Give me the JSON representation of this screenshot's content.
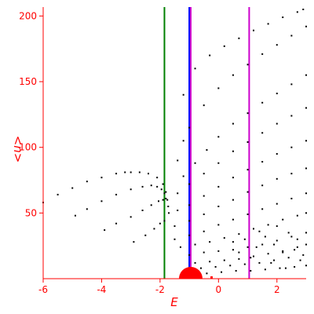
{
  "chart_data": {
    "type": "scatter",
    "xlabel": "E",
    "ylabel": "<n>",
    "xlim": [
      -6,
      3
    ],
    "ylim": [
      0,
      205
    ],
    "grid": false,
    "x_ticks": [
      {
        "value": -6,
        "label": "-6"
      },
      {
        "value": -4,
        "label": "-4"
      },
      {
        "value": -2,
        "label": "-2"
      },
      {
        "value": 0,
        "label": "0"
      },
      {
        "value": 2,
        "label": "2"
      }
    ],
    "y_ticks": [
      {
        "value": 50,
        "label": "50"
      },
      {
        "value": 100,
        "label": "100"
      },
      {
        "value": 150,
        "label": "150"
      },
      {
        "value": 200,
        "label": "200"
      }
    ],
    "colors": {
      "axis": "#ff0000",
      "points": "#000000",
      "green_line": "#008000",
      "blue_line": "#0000ff",
      "magenta_line": "#cc00cc",
      "blob": "#ff0000"
    },
    "vertical_lines": [
      {
        "x": -1.85,
        "color": "#008000"
      },
      {
        "x": -1.0,
        "color": "#0000ff"
      },
      {
        "x": -0.95,
        "color": "#cc00cc"
      },
      {
        "x": 1.05,
        "color": "#cc00cc"
      }
    ],
    "marker": {
      "x": -0.95,
      "y": 0,
      "color": "#ff0000"
    },
    "series": [
      {
        "values": [
          [
            -6,
            58
          ],
          [
            -5.5,
            64
          ],
          [
            -5,
            69
          ],
          [
            -4.5,
            74
          ],
          [
            -4,
            77
          ],
          [
            -3.5,
            80
          ],
          [
            -3.2,
            81
          ],
          [
            -3,
            81
          ],
          [
            -2.7,
            81
          ],
          [
            -2.4,
            80
          ],
          [
            -2.1,
            77
          ],
          [
            -1.9,
            72
          ],
          [
            -1.8,
            66
          ],
          [
            -1.75,
            60
          ],
          [
            -1.72,
            55
          ],
          [
            -1.7,
            50
          ]
        ]
      },
      {
        "values": [
          [
            -4.9,
            48
          ],
          [
            -4.5,
            53
          ],
          [
            -4,
            59
          ],
          [
            -3.5,
            64
          ],
          [
            -3,
            68
          ],
          [
            -2.6,
            70
          ],
          [
            -2.3,
            71
          ],
          [
            -2.1,
            70
          ],
          [
            -1.95,
            68
          ],
          [
            -1.85,
            65
          ]
        ]
      },
      {
        "values": [
          [
            -3.9,
            37
          ],
          [
            -3.5,
            42
          ],
          [
            -3,
            47
          ],
          [
            -2.6,
            52
          ],
          [
            -2.3,
            56
          ],
          [
            -2.05,
            59
          ],
          [
            -1.9,
            60
          ],
          [
            -1.8,
            61
          ]
        ]
      },
      {
        "values": [
          [
            -2.9,
            28
          ],
          [
            -2.5,
            33
          ],
          [
            -2.2,
            38
          ],
          [
            -2,
            42
          ],
          [
            -1.85,
            44
          ]
        ]
      },
      {
        "values": [
          [
            -1.2,
            140
          ],
          [
            -0.8,
            160
          ],
          [
            -0.3,
            170
          ],
          [
            0.2,
            177
          ],
          [
            0.7,
            183
          ],
          [
            1.2,
            189
          ],
          [
            1.7,
            194
          ],
          [
            2.2,
            199
          ],
          [
            2.7,
            203
          ],
          [
            2.9,
            205
          ]
        ]
      },
      {
        "values": [
          [
            -1.4,
            90
          ],
          [
            -1.2,
            105
          ],
          [
            -1,
            115
          ],
          [
            -0.5,
            132
          ],
          [
            0,
            145
          ],
          [
            0.5,
            155
          ],
          [
            1,
            163
          ],
          [
            1.5,
            171
          ],
          [
            2,
            178
          ],
          [
            2.5,
            185
          ],
          [
            3,
            192
          ]
        ]
      },
      {
        "values": [
          [
            -1.2,
            78
          ],
          [
            -0.8,
            88
          ],
          [
            -0.4,
            98
          ],
          [
            0,
            108
          ],
          [
            0.5,
            118
          ],
          [
            1,
            126
          ],
          [
            1.5,
            134
          ],
          [
            2,
            141
          ],
          [
            2.5,
            148
          ],
          [
            3,
            155
          ]
        ]
      },
      {
        "values": [
          [
            -1.4,
            65
          ],
          [
            -1,
            72
          ],
          [
            -0.5,
            80
          ],
          [
            0,
            88
          ],
          [
            0.5,
            97
          ],
          [
            1,
            104
          ],
          [
            1.5,
            111
          ],
          [
            2,
            118
          ],
          [
            2.5,
            124
          ],
          [
            3,
            130
          ]
        ]
      },
      {
        "values": [
          [
            -1.4,
            52
          ],
          [
            -1,
            56
          ],
          [
            -0.5,
            63
          ],
          [
            0,
            70
          ],
          [
            0.5,
            77
          ],
          [
            1,
            83
          ],
          [
            1.5,
            89
          ],
          [
            2,
            95
          ],
          [
            2.5,
            100
          ],
          [
            3,
            105
          ]
        ]
      },
      {
        "values": [
          [
            -1.5,
            40
          ],
          [
            -1,
            44
          ],
          [
            -0.5,
            49
          ],
          [
            0,
            55
          ],
          [
            0.5,
            60
          ],
          [
            1,
            66
          ],
          [
            1.5,
            71
          ],
          [
            2,
            76
          ],
          [
            2.5,
            80
          ],
          [
            3,
            84
          ]
        ]
      },
      {
        "values": [
          [
            -1.5,
            30
          ],
          [
            -1,
            33
          ],
          [
            -0.5,
            36
          ],
          [
            0,
            41
          ],
          [
            0.5,
            45
          ],
          [
            1,
            49
          ],
          [
            1.5,
            53
          ],
          [
            2,
            57
          ],
          [
            2.5,
            61
          ],
          [
            3,
            65
          ]
        ]
      },
      {
        "values": [
          [
            -1.3,
            24
          ],
          [
            -0.8,
            26
          ],
          [
            -0.3,
            28
          ],
          [
            0.2,
            31
          ],
          [
            0.7,
            34
          ],
          [
            1.2,
            38
          ],
          [
            1.7,
            41
          ],
          [
            2.2,
            45
          ],
          [
            2.7,
            48
          ],
          [
            3,
            50
          ]
        ]
      },
      {
        "values": [
          [
            -1.0,
            18
          ],
          [
            -0.5,
            20
          ],
          [
            0,
            21
          ],
          [
            0.5,
            22
          ],
          [
            1,
            24
          ],
          [
            1.5,
            26
          ],
          [
            2,
            29
          ],
          [
            2.5,
            32
          ],
          [
            3,
            35
          ]
        ]
      },
      {
        "values": [
          [
            -0.8,
            12
          ],
          [
            -0.3,
            13
          ],
          [
            0.2,
            14
          ],
          [
            0.7,
            15
          ],
          [
            1.2,
            17
          ],
          [
            1.7,
            19
          ],
          [
            2.2,
            21
          ],
          [
            2.7,
            24
          ],
          [
            3,
            26
          ]
        ]
      },
      {
        "values": [
          [
            -0.6,
            8
          ],
          [
            -0.1,
            9
          ],
          [
            0.4,
            10
          ],
          [
            0.9,
            11
          ],
          [
            1.4,
            12
          ],
          [
            1.9,
            14
          ],
          [
            2.4,
            16
          ],
          [
            2.9,
            18
          ]
        ]
      },
      {
        "values": [
          [
            -0.4,
            4
          ],
          [
            0.1,
            5
          ],
          [
            0.6,
            6
          ],
          [
            1.1,
            6
          ],
          [
            1.6,
            7
          ],
          [
            2.1,
            8
          ],
          [
            2.6,
            9
          ],
          [
            3,
            10
          ]
        ]
      },
      {
        "values": [
          [
            0.5,
            28
          ],
          [
            0.9,
            30
          ],
          [
            1.3,
            24
          ],
          [
            1.6,
            32
          ],
          [
            1.9,
            26
          ],
          [
            2.2,
            20
          ],
          [
            2.4,
            35
          ],
          [
            2.6,
            22
          ],
          [
            2.8,
            14
          ],
          [
            1.1,
            16
          ],
          [
            0.7,
            20
          ],
          [
            1.8,
            12
          ],
          [
            2.3,
            8
          ],
          [
            1.4,
            36
          ],
          [
            2.0,
            40
          ],
          [
            2.7,
            30
          ]
        ]
      }
    ]
  }
}
